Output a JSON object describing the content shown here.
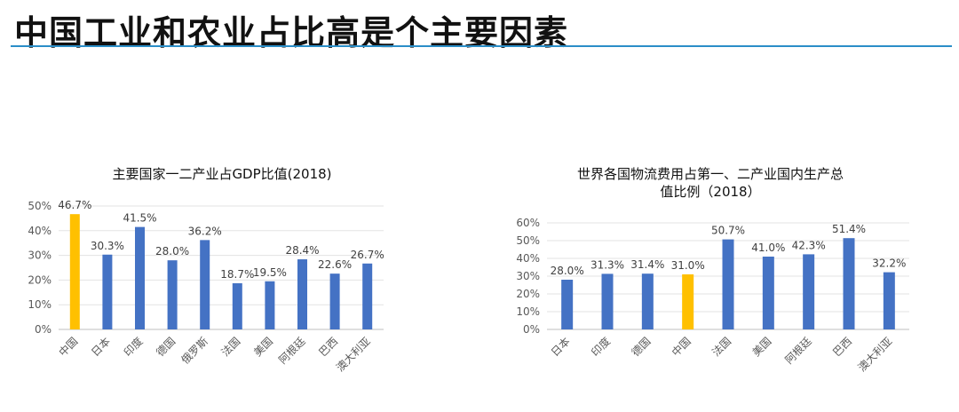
{
  "page": {
    "title": "中国工业和农业占比高是个主要因素",
    "accent_color": "#2b8ec8"
  },
  "chart_data": [
    {
      "type": "bar",
      "title": "主要国家一二产业占GDP比值(2018)",
      "categories": [
        "中国",
        "日本",
        "印度",
        "德国",
        "俄罗斯",
        "法国",
        "美国",
        "阿根廷",
        "巴西",
        "澳大利亚"
      ],
      "values": [
        46.7,
        30.3,
        41.5,
        28.0,
        36.2,
        18.7,
        19.5,
        28.4,
        22.6,
        26.7
      ],
      "value_labels": [
        "46.7%",
        "30.3%",
        "41.5%",
        "28.0%",
        "36.2%",
        "18.7%",
        "19.5%",
        "28.4%",
        "22.6%",
        "26.7%"
      ],
      "highlight": "中国",
      "ylim": [
        0,
        50
      ],
      "yticks": [
        0,
        10,
        20,
        30,
        40,
        50
      ],
      "ytick_labels": [
        "0%",
        "10%",
        "20%",
        "30%",
        "40%",
        "50%"
      ],
      "grid": true,
      "colors": {
        "bar": "#4472c4",
        "highlight": "#ffc000"
      }
    },
    {
      "type": "bar",
      "title": "世界各国物流费用占第一、二产业国内生产总值比例（2018）",
      "title_lines": [
        "世界各国物流费用占第一、二产业国内生产总",
        "值比例（2018）"
      ],
      "categories": [
        "日本",
        "印度",
        "德国",
        "中国",
        "法国",
        "美国",
        "阿根廷",
        "巴西",
        "澳大利亚"
      ],
      "values": [
        28.0,
        31.3,
        31.4,
        31.0,
        50.7,
        41.0,
        42.3,
        51.4,
        32.2
      ],
      "value_labels": [
        "28.0%",
        "31.3%",
        "31.4%",
        "31.0%",
        "50.7%",
        "41.0%",
        "42.3%",
        "51.4%",
        "32.2%"
      ],
      "highlight": "中国",
      "ylim": [
        0,
        60
      ],
      "yticks": [
        0,
        10,
        20,
        30,
        40,
        50,
        60
      ],
      "ytick_labels": [
        "0%",
        "10%",
        "20%",
        "30%",
        "40%",
        "50%",
        "60%"
      ],
      "grid": true,
      "colors": {
        "bar": "#4472c4",
        "highlight": "#ffc000"
      }
    }
  ]
}
